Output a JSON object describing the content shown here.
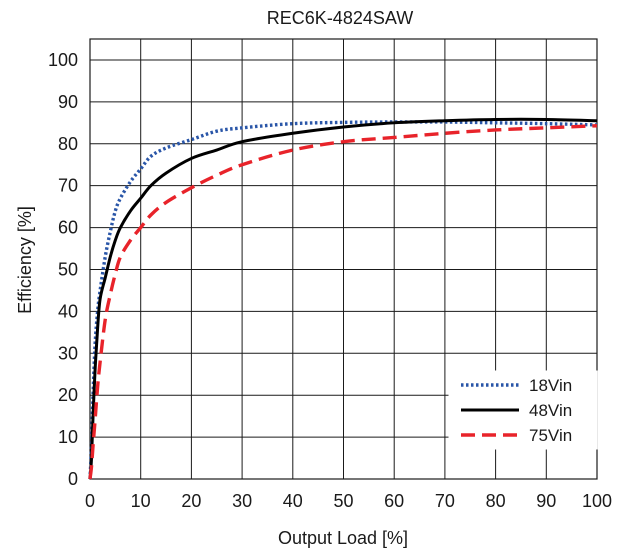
{
  "chart_data": {
    "type": "line",
    "title": "REC6K-4824SAW",
    "xlabel": "Output Load [%]",
    "ylabel": "Efficiency [%]",
    "xlim": [
      0,
      100
    ],
    "ylim": [
      0,
      105
    ],
    "x_ticks": [
      0,
      10,
      20,
      30,
      40,
      50,
      60,
      70,
      80,
      90,
      100
    ],
    "y_ticks": [
      0,
      10,
      20,
      30,
      40,
      50,
      60,
      70,
      80,
      90,
      100
    ],
    "grid": true,
    "legend_position": "bottom-right",
    "series": [
      {
        "name": "18Vin",
        "color": "#2a56a8",
        "dash": "dotted",
        "x": [
          0.3,
          0.6,
          1,
          1.5,
          2,
          3,
          4,
          5,
          6,
          8,
          10,
          12,
          15,
          20,
          25,
          30,
          40,
          50,
          60,
          70,
          80,
          90,
          100
        ],
        "y": [
          8,
          20,
          32,
          40,
          45,
          53,
          59,
          64,
          67,
          71,
          74,
          77,
          79,
          81,
          83,
          83.8,
          84.8,
          85.1,
          85.2,
          85.2,
          85,
          84.8,
          84.5
        ]
      },
      {
        "name": "48Vin",
        "color": "#000000",
        "dash": "solid",
        "x": [
          0.3,
          0.6,
          1,
          1.5,
          2,
          3,
          4,
          5,
          6,
          8,
          10,
          12,
          15,
          20,
          25,
          30,
          40,
          50,
          60,
          70,
          80,
          90,
          100
        ],
        "y": [
          5,
          15,
          26,
          36,
          43,
          48,
          53,
          57,
          60,
          64,
          67,
          70,
          73,
          76.5,
          78.5,
          80.5,
          82.5,
          84,
          85,
          85.5,
          85.8,
          85.8,
          85.5
        ]
      },
      {
        "name": "75Vin",
        "color": "#e8232a",
        "dash": "dashed",
        "x": [
          0.3,
          0.6,
          1,
          1.5,
          2,
          3,
          4,
          5,
          6,
          8,
          10,
          12,
          15,
          20,
          25,
          30,
          40,
          50,
          60,
          70,
          80,
          90,
          100
        ],
        "y": [
          3,
          8,
          14,
          22,
          28,
          38,
          44,
          49,
          53,
          57,
          60,
          63,
          66,
          69.5,
          72.5,
          75,
          78.5,
          80.5,
          81.5,
          82.5,
          83.3,
          83.8,
          84.3
        ]
      }
    ]
  }
}
